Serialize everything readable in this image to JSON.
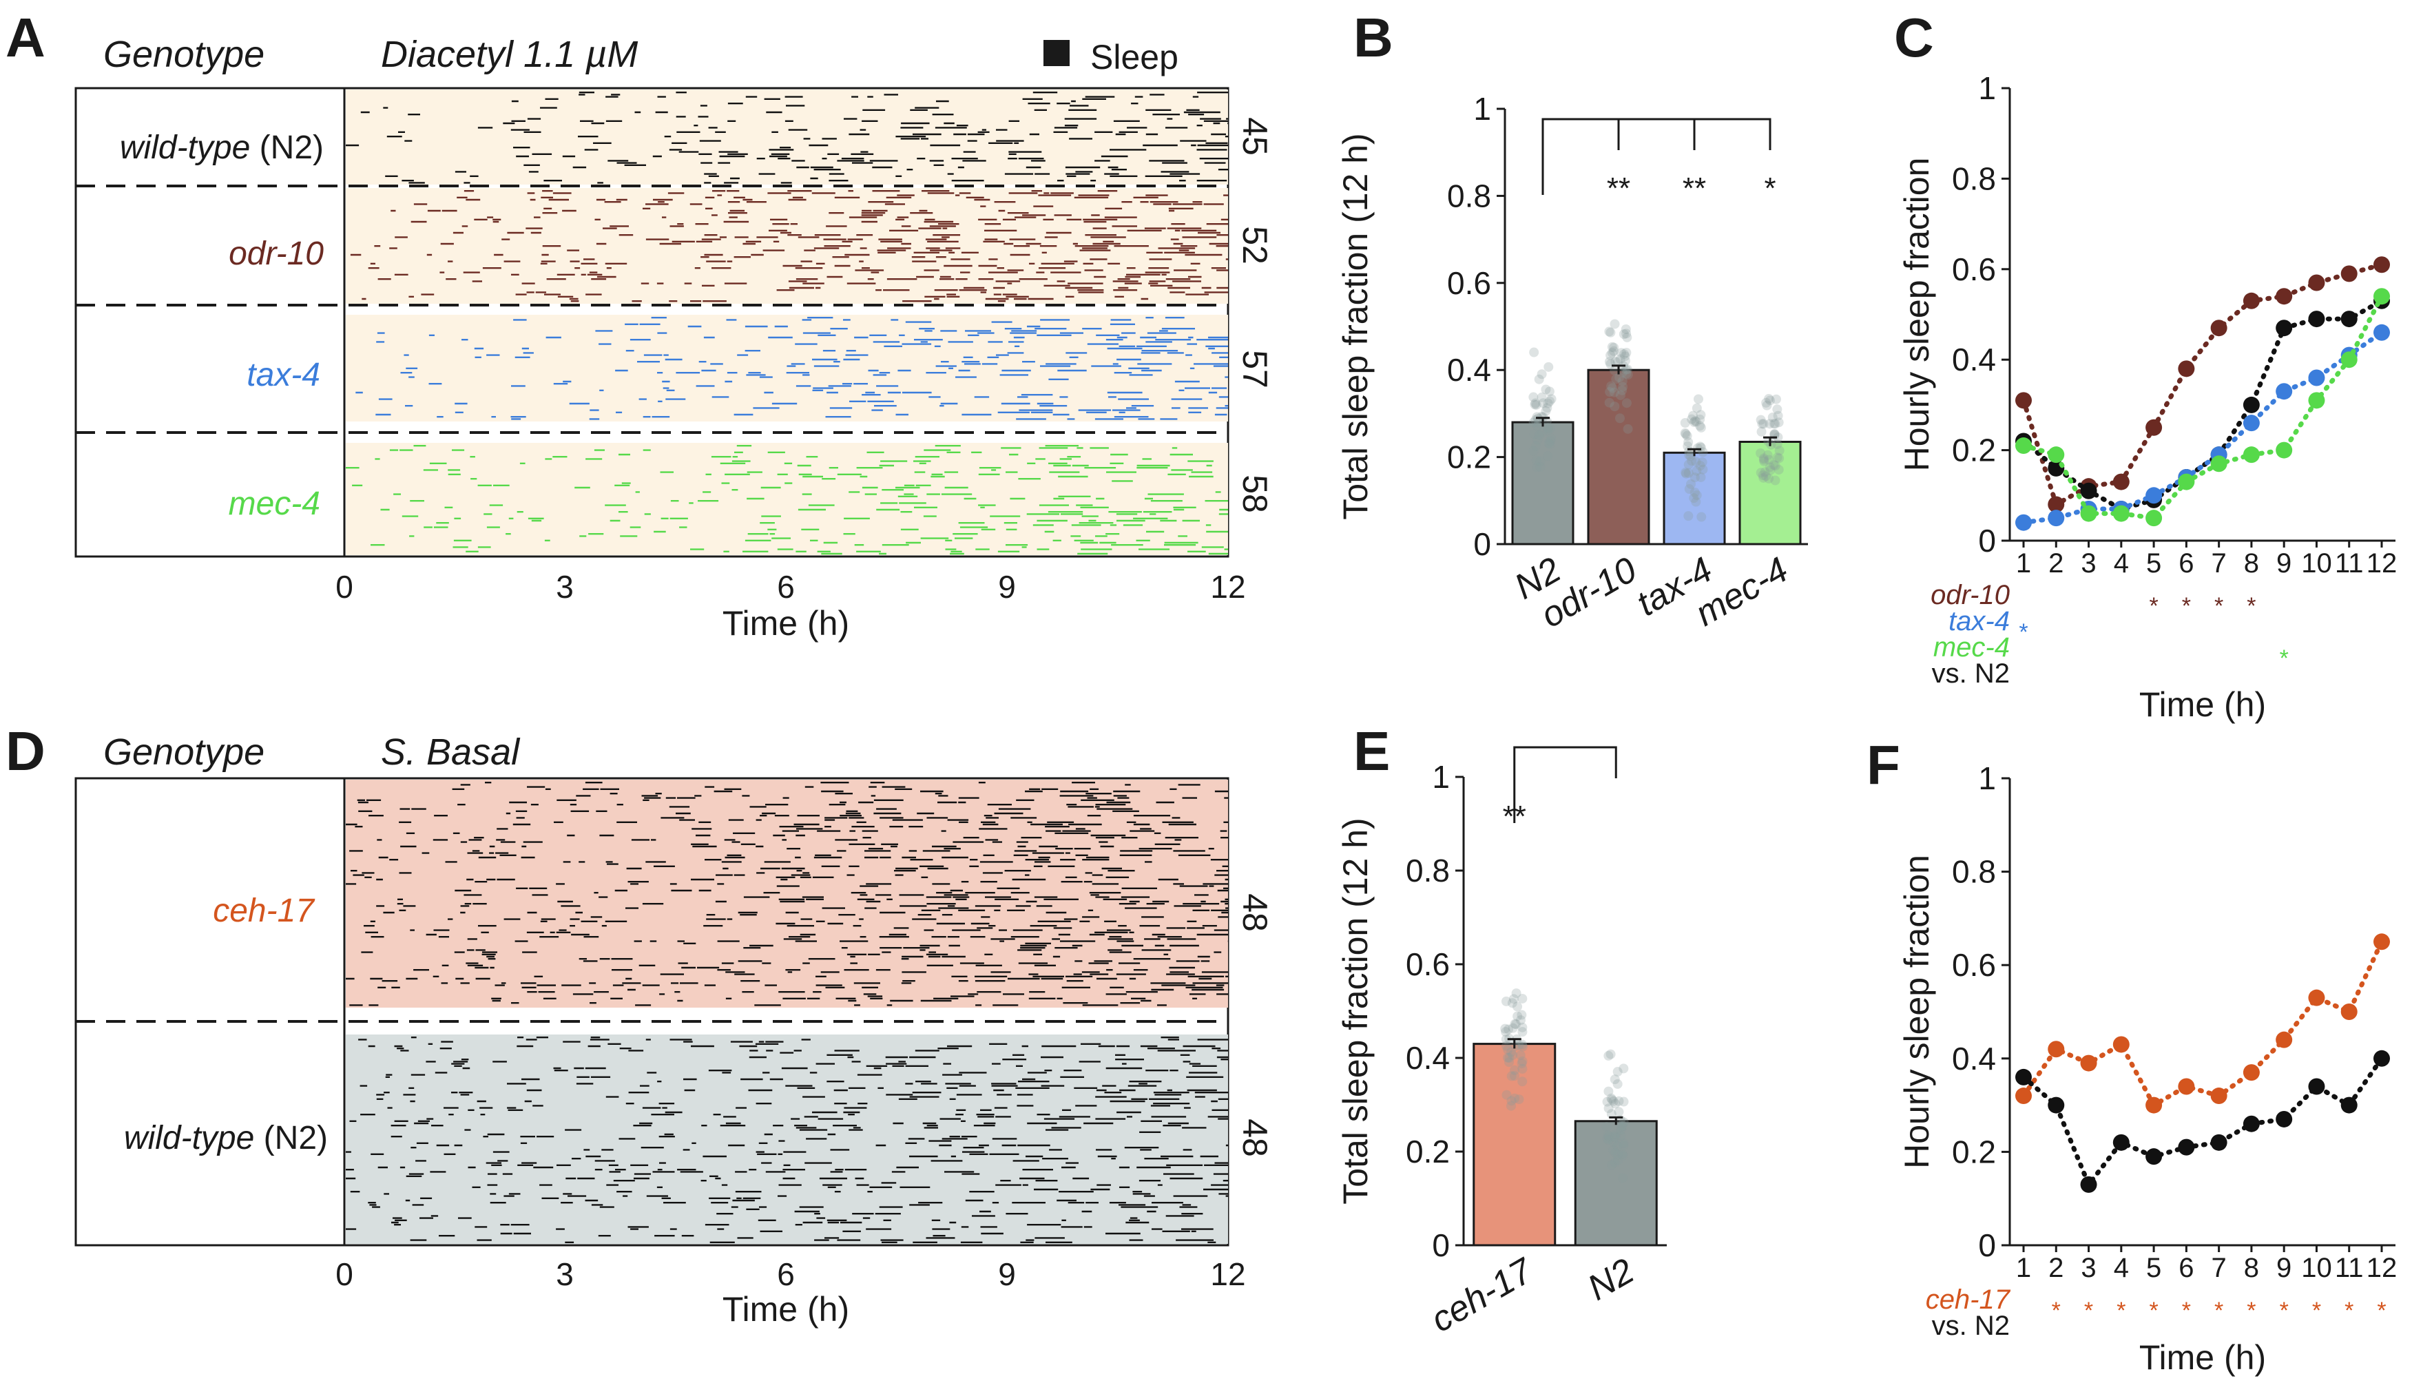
{
  "panel_labels": {
    "A": "A",
    "B": "B",
    "C": "C",
    "D": "D",
    "E": "E",
    "F": "F"
  },
  "colors": {
    "n2": "#111111",
    "odr10": "#6b2a22",
    "tax4": "#3b7ddb",
    "mec4": "#56d94a",
    "ceh17": "#d4551e",
    "bg_cream": "#fdf3e3",
    "bg_ceh17": "#f4cfc2",
    "bg_n2_basal": "#d8dfdf",
    "bar_n2": "#8f9b9a",
    "bar_odr10": "#8d5f58",
    "bar_tax4": "#9db7f2",
    "bar_mec4": "#a4ef92",
    "bar_ceh17": "#e7937a"
  },
  "panel_A": {
    "header_genotype": "Genotype",
    "header_condition": "Diacetyl 1.1 µM",
    "legend": "Sleep",
    "rows": [
      {
        "italic_name": "wild-type",
        "plain_suffix": " (N2)",
        "count": "45",
        "color_key": "n2"
      },
      {
        "italic_name": "odr-10",
        "plain_suffix": "",
        "count": "52",
        "color_key": "odr10"
      },
      {
        "italic_name": "tax-4",
        "plain_suffix": "",
        "count": "57",
        "color_key": "tax4"
      },
      {
        "italic_name": "mec-4",
        "plain_suffix": "",
        "count": "58",
        "color_key": "mec4"
      }
    ],
    "x_ticks": [
      "0",
      "3",
      "6",
      "9",
      "12"
    ],
    "xlabel": "Time (h)"
  },
  "panel_D": {
    "header_genotype": "Genotype",
    "header_condition": "S. Basal",
    "rows": [
      {
        "italic_name": "ceh-17",
        "plain_suffix": "",
        "count": "48",
        "color_key": "ceh17"
      },
      {
        "italic_name": "wild-type",
        "plain_suffix": " (N2)",
        "count": "48",
        "color_key": "n2"
      }
    ],
    "x_ticks": [
      "0",
      "3",
      "6",
      "9",
      "12"
    ],
    "xlabel": "Time (h)"
  },
  "chart_data": [
    {
      "id": "B",
      "type": "bar",
      "categories": [
        "N2",
        "odr-10",
        "tax-4",
        "mec-4"
      ],
      "values": [
        0.28,
        0.4,
        0.21,
        0.235
      ],
      "errors": [
        0.01,
        0.01,
        0.008,
        0.01
      ],
      "ylabel": "Total sleep fraction (12 h)",
      "ylim": [
        0,
        1
      ],
      "yticks": [
        "0",
        "0.2",
        "0.4",
        "0.6",
        "0.8",
        "1"
      ],
      "significance": {
        "reference": "N2",
        "marks": [
          "",
          "**",
          "**",
          "*"
        ]
      }
    },
    {
      "id": "C",
      "type": "line",
      "x": [
        1,
        2,
        3,
        4,
        5,
        6,
        7,
        8,
        9,
        10,
        11,
        12
      ],
      "x_tick_labels": [
        "1",
        "2",
        "3",
        "4",
        "5",
        "6",
        "7",
        "8",
        "9",
        "10",
        "11",
        "12"
      ],
      "series": [
        {
          "name": "odr-10",
          "values": [
            0.31,
            0.08,
            0.12,
            0.13,
            0.25,
            0.38,
            0.47,
            0.53,
            0.54,
            0.57,
            0.59,
            0.61
          ]
        },
        {
          "name": "N2",
          "values": [
            0.22,
            0.16,
            0.11,
            0.07,
            0.09,
            0.14,
            0.19,
            0.3,
            0.47,
            0.49,
            0.49,
            0.53
          ]
        },
        {
          "name": "tax-4",
          "values": [
            0.04,
            0.05,
            0.07,
            0.07,
            0.1,
            0.14,
            0.19,
            0.26,
            0.33,
            0.36,
            0.41,
            0.46
          ]
        },
        {
          "name": "mec-4",
          "values": [
            0.21,
            0.19,
            0.06,
            0.06,
            0.05,
            0.13,
            0.17,
            0.19,
            0.2,
            0.31,
            0.4,
            0.54
          ]
        }
      ],
      "ylabel": "Hourly sleep fraction",
      "xlabel": "Time (h)",
      "ylim": [
        0,
        1
      ],
      "yticks": [
        "0",
        "0.2",
        "0.4",
        "0.6",
        "0.8",
        "1"
      ],
      "comparison_legend": [
        {
          "label": "odr-10",
          "star_hours": [
            5,
            6,
            7,
            8
          ]
        },
        {
          "label": "tax-4",
          "star_hours": [
            1
          ]
        },
        {
          "label": "mec-4",
          "star_hours": [
            9
          ]
        }
      ],
      "vs_label": "vs. N2"
    },
    {
      "id": "E",
      "type": "bar",
      "categories": [
        "ceh-17",
        "N2"
      ],
      "values": [
        0.43,
        0.265
      ],
      "errors": [
        0.01,
        0.008
      ],
      "ylabel": "Total sleep fraction (12 h)",
      "ylim": [
        0,
        1
      ],
      "yticks": [
        "0",
        "0.2",
        "0.4",
        "0.6",
        "0.8",
        "1"
      ],
      "significance": {
        "reference": "N2",
        "marks": [
          "**",
          ""
        ]
      }
    },
    {
      "id": "F",
      "type": "line",
      "x": [
        1,
        2,
        3,
        4,
        5,
        6,
        7,
        8,
        9,
        10,
        11,
        12
      ],
      "x_tick_labels": [
        "1",
        "2",
        "3",
        "4",
        "5",
        "6",
        "7",
        "8",
        "9",
        "10",
        "11",
        "12"
      ],
      "series": [
        {
          "name": "ceh-17",
          "values": [
            0.32,
            0.42,
            0.39,
            0.43,
            0.3,
            0.34,
            0.32,
            0.37,
            0.44,
            0.53,
            0.5,
            0.65
          ]
        },
        {
          "name": "N2",
          "values": [
            0.36,
            0.3,
            0.13,
            0.22,
            0.19,
            0.21,
            0.22,
            0.26,
            0.27,
            0.34,
            0.3,
            0.4
          ]
        }
      ],
      "ylabel": "Hourly sleep fraction",
      "xlabel": "Time (h)",
      "ylim": [
        0,
        1
      ],
      "yticks": [
        "0",
        "0.2",
        "0.4",
        "0.6",
        "0.8",
        "1"
      ],
      "comparison_legend": [
        {
          "label": "ceh-17",
          "star_hours": [
            2,
            3,
            4,
            5,
            6,
            7,
            8,
            9,
            10,
            11,
            12
          ]
        }
      ],
      "vs_label": "vs. N2"
    }
  ]
}
